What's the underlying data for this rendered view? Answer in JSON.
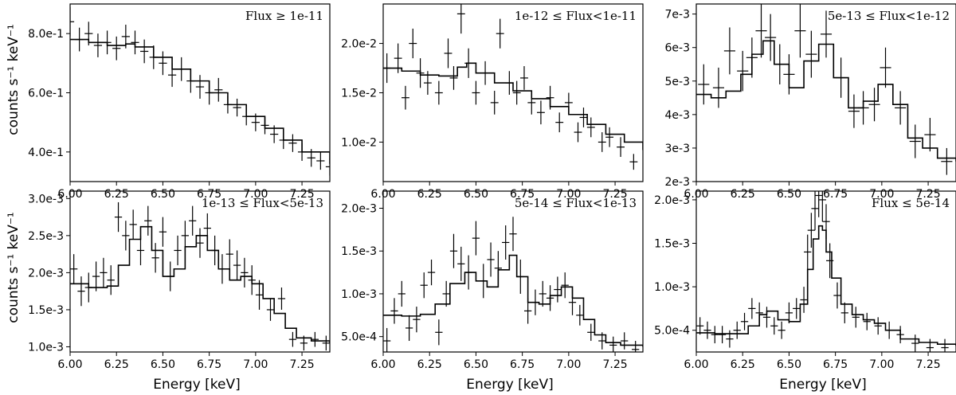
{
  "figure": {
    "ylabel": "counts s⁻¹ keV⁻¹",
    "xlabel": "Energy [keV]"
  },
  "chart_data": [
    {
      "type": "line",
      "title": "Flux ≥ 1e-11",
      "xlim": [
        6.0,
        7.4
      ],
      "ylim": [
        0.3,
        0.9
      ],
      "xticks": [
        6.0,
        6.25,
        6.5,
        6.75,
        7.0,
        7.25
      ],
      "xtick_labels": [
        "6.00",
        "6.25",
        "6.50",
        "6.75",
        "7.00",
        "7.25"
      ],
      "yticks": [
        0.4,
        0.6,
        0.8
      ],
      "ytick_labels": [
        "4.0e-1",
        "6.0e-1",
        "8.0e-1"
      ],
      "model": {
        "x": [
          6.0,
          6.1,
          6.2,
          6.3,
          6.35,
          6.45,
          6.55,
          6.65,
          6.75,
          6.85,
          6.95,
          7.05,
          7.15,
          7.25,
          7.4
        ],
        "y": [
          0.78,
          0.77,
          0.76,
          0.765,
          0.755,
          0.72,
          0.68,
          0.64,
          0.6,
          0.56,
          0.52,
          0.48,
          0.44,
          0.4,
          0.36
        ]
      },
      "points": {
        "x": [
          6.0,
          6.05,
          6.1,
          6.15,
          6.2,
          6.25,
          6.3,
          6.35,
          6.4,
          6.45,
          6.5,
          6.55,
          6.6,
          6.65,
          6.7,
          6.75,
          6.8,
          6.85,
          6.9,
          6.95,
          7.0,
          7.05,
          7.1,
          7.15,
          7.2,
          7.25,
          7.3,
          7.35,
          7.4
        ],
        "y": [
          0.84,
          0.78,
          0.8,
          0.76,
          0.77,
          0.75,
          0.79,
          0.77,
          0.74,
          0.72,
          0.7,
          0.66,
          0.68,
          0.64,
          0.62,
          0.6,
          0.61,
          0.56,
          0.55,
          0.52,
          0.5,
          0.49,
          0.46,
          0.44,
          0.43,
          0.4,
          0.38,
          0.37,
          0.35
        ],
        "yerr": [
          0.05,
          0.04,
          0.04,
          0.04,
          0.04,
          0.04,
          0.04,
          0.04,
          0.04,
          0.04,
          0.04,
          0.04,
          0.04,
          0.04,
          0.04,
          0.04,
          0.04,
          0.03,
          0.03,
          0.03,
          0.03,
          0.03,
          0.03,
          0.03,
          0.03,
          0.03,
          0.03,
          0.03,
          0.03
        ]
      }
    },
    {
      "type": "line",
      "title": "1e-12 ≤ Flux<1e-11",
      "xlim": [
        6.0,
        7.4
      ],
      "ylim": [
        0.006,
        0.024
      ],
      "xticks": [
        6.0,
        6.25,
        6.5,
        6.75,
        7.0,
        7.25
      ],
      "xtick_labels": [
        "6.00",
        "6.25",
        "6.50",
        "6.75",
        "7.00",
        "7.25"
      ],
      "yticks": [
        0.01,
        0.015,
        0.02
      ],
      "ytick_labels": [
        "1.0e-2",
        "1.5e-2",
        "2.0e-2"
      ],
      "model": {
        "x": [
          6.0,
          6.1,
          6.2,
          6.3,
          6.4,
          6.45,
          6.5,
          6.6,
          6.7,
          6.8,
          6.9,
          7.0,
          7.1,
          7.2,
          7.3,
          7.4
        ],
        "y": [
          0.0175,
          0.0172,
          0.0168,
          0.0167,
          0.0176,
          0.018,
          0.017,
          0.016,
          0.0152,
          0.0144,
          0.0136,
          0.0128,
          0.0118,
          0.0108,
          0.01,
          0.0092
        ]
      },
      "points": {
        "x": [
          6.02,
          6.08,
          6.12,
          6.16,
          6.2,
          6.24,
          6.3,
          6.35,
          6.38,
          6.42,
          6.46,
          6.5,
          6.55,
          6.6,
          6.63,
          6.68,
          6.72,
          6.76,
          6.8,
          6.85,
          6.9,
          6.95,
          7.0,
          7.05,
          7.08,
          7.12,
          7.18,
          7.22,
          7.28,
          7.35
        ],
        "y": [
          0.0175,
          0.0185,
          0.0145,
          0.02,
          0.017,
          0.016,
          0.015,
          0.019,
          0.0165,
          0.023,
          0.018,
          0.015,
          0.017,
          0.014,
          0.021,
          0.016,
          0.015,
          0.0165,
          0.014,
          0.013,
          0.0145,
          0.012,
          0.014,
          0.011,
          0.0125,
          0.0115,
          0.01,
          0.0105,
          0.0095,
          0.008
        ],
        "yerr": [
          0.0015,
          0.0015,
          0.0012,
          0.0015,
          0.0015,
          0.0012,
          0.0012,
          0.0015,
          0.0012,
          0.002,
          0.0015,
          0.0012,
          0.0012,
          0.0012,
          0.0015,
          0.0012,
          0.0012,
          0.0012,
          0.0012,
          0.0012,
          0.0012,
          0.001,
          0.001,
          0.001,
          0.001,
          0.001,
          0.001,
          0.001,
          0.001,
          0.0008
        ]
      }
    },
    {
      "type": "line",
      "title": "5e-13 ≤ Flux<1e-12",
      "xlim": [
        6.0,
        7.4
      ],
      "ylim": [
        0.002,
        0.0073
      ],
      "xticks": [
        6.0,
        6.25,
        6.5,
        6.75,
        7.0,
        7.25
      ],
      "xtick_labels": [
        "6.00",
        "6.25",
        "6.50",
        "6.75",
        "7.00",
        "7.25"
      ],
      "yticks": [
        0.002,
        0.003,
        0.004,
        0.005,
        0.006,
        0.007
      ],
      "ytick_labels": [
        "2e-3",
        "3e-3",
        "4e-3",
        "5e-3",
        "6e-3",
        "7e-3"
      ],
      "model": {
        "x": [
          6.0,
          6.08,
          6.16,
          6.24,
          6.3,
          6.36,
          6.42,
          6.5,
          6.58,
          6.66,
          6.74,
          6.82,
          6.9,
          6.98,
          7.06,
          7.14,
          7.22,
          7.3,
          7.4
        ],
        "y": [
          0.0046,
          0.0045,
          0.0047,
          0.0052,
          0.0058,
          0.0062,
          0.0055,
          0.0048,
          0.0056,
          0.0061,
          0.0051,
          0.0042,
          0.0044,
          0.0049,
          0.0043,
          0.0033,
          0.003,
          0.0027,
          0.0026
        ]
      },
      "points": {
        "x": [
          6.04,
          6.12,
          6.18,
          6.25,
          6.3,
          6.35,
          6.4,
          6.45,
          6.5,
          6.56,
          6.62,
          6.7,
          6.78,
          6.85,
          6.9,
          6.96,
          7.02,
          7.1,
          7.18,
          7.26,
          7.35
        ],
        "y": [
          0.0049,
          0.0048,
          0.0059,
          0.0053,
          0.0057,
          0.0065,
          0.0063,
          0.0055,
          0.0052,
          0.0065,
          0.0058,
          0.0064,
          0.0051,
          0.0041,
          0.0042,
          0.0043,
          0.0054,
          0.0042,
          0.0032,
          0.0034,
          0.0026
        ],
        "yerr": [
          0.0006,
          0.0006,
          0.0007,
          0.0006,
          0.0006,
          0.0008,
          0.0007,
          0.0006,
          0.0006,
          0.0008,
          0.0007,
          0.0007,
          0.0006,
          0.0005,
          0.0005,
          0.0005,
          0.0006,
          0.0005,
          0.0005,
          0.0005,
          0.0004
        ]
      }
    },
    {
      "type": "line",
      "title": "1e-13 ≤ Flux<5e-13",
      "xlim": [
        6.0,
        7.4
      ],
      "ylim": [
        0.00093,
        0.0031
      ],
      "xticks": [
        6.0,
        6.25,
        6.5,
        6.75,
        7.0,
        7.25
      ],
      "xtick_labels": [
        "6.00",
        "6.25",
        "6.50",
        "6.75",
        "7.00",
        "7.25"
      ],
      "yticks": [
        0.001,
        0.0015,
        0.002,
        0.0025,
        0.003
      ],
      "ytick_labels": [
        "1.0e-3",
        "1.5e-3",
        "2.0e-3",
        "2.5e-3",
        "3.0e-3"
      ],
      "model": {
        "x": [
          6.0,
          6.1,
          6.2,
          6.26,
          6.32,
          6.38,
          6.44,
          6.5,
          6.56,
          6.62,
          6.68,
          6.74,
          6.8,
          6.86,
          6.92,
          6.98,
          7.04,
          7.1,
          7.16,
          7.22,
          7.3,
          7.4
        ],
        "y": [
          0.00185,
          0.0018,
          0.00182,
          0.0021,
          0.00245,
          0.00262,
          0.0023,
          0.00195,
          0.00205,
          0.00235,
          0.0025,
          0.0023,
          0.00205,
          0.0019,
          0.00195,
          0.00185,
          0.00165,
          0.00145,
          0.00125,
          0.00112,
          0.00108,
          0.00105
        ]
      },
      "points": {
        "x": [
          6.02,
          6.06,
          6.1,
          6.14,
          6.18,
          6.22,
          6.26,
          6.3,
          6.34,
          6.38,
          6.42,
          6.46,
          6.5,
          6.54,
          6.58,
          6.62,
          6.66,
          6.7,
          6.74,
          6.78,
          6.82,
          6.86,
          6.9,
          6.94,
          6.98,
          7.02,
          7.08,
          7.14,
          7.2,
          7.26,
          7.32,
          7.38
        ],
        "y": [
          0.00205,
          0.00175,
          0.0018,
          0.00195,
          0.002,
          0.0019,
          0.00275,
          0.0025,
          0.00265,
          0.0023,
          0.0027,
          0.0022,
          0.00255,
          0.00195,
          0.0023,
          0.0025,
          0.0027,
          0.0024,
          0.0026,
          0.0023,
          0.00205,
          0.00225,
          0.0021,
          0.002,
          0.0019,
          0.0017,
          0.0015,
          0.00165,
          0.0011,
          0.00105,
          0.0011,
          0.00105
        ],
        "yerr": [
          0.0002,
          0.0002,
          0.0002,
          0.0002,
          0.0002,
          0.0002,
          0.0002,
          0.0002,
          0.0002,
          0.0002,
          0.0002,
          0.0002,
          0.0002,
          0.0002,
          0.0002,
          0.0002,
          0.0002,
          0.0002,
          0.0002,
          0.0002,
          0.0002,
          0.0002,
          0.0002,
          0.0002,
          0.0002,
          0.0002,
          0.00015,
          0.00015,
          0.0001,
          0.0001,
          0.0001,
          0.0001
        ]
      }
    },
    {
      "type": "line",
      "title": "5e-14 ≤ Flux<1e-13",
      "xlim": [
        6.0,
        7.4
      ],
      "ylim": [
        0.00032,
        0.0022
      ],
      "xticks": [
        6.0,
        6.25,
        6.5,
        6.75,
        7.0,
        7.25
      ],
      "xtick_labels": [
        "6.00",
        "6.25",
        "6.50",
        "6.75",
        "7.00",
        "7.25"
      ],
      "yticks": [
        0.0005,
        0.001,
        0.0015,
        0.002
      ],
      "ytick_labels": [
        "5.0e-4",
        "1.0e-3",
        "1.5e-3",
        "2.0e-3"
      ],
      "model": {
        "x": [
          6.0,
          6.1,
          6.2,
          6.28,
          6.36,
          6.44,
          6.5,
          6.56,
          6.62,
          6.68,
          6.72,
          6.78,
          6.84,
          6.9,
          6.96,
          7.02,
          7.08,
          7.14,
          7.2,
          7.28,
          7.4
        ],
        "y": [
          0.00075,
          0.00074,
          0.00076,
          0.00088,
          0.00112,
          0.00125,
          0.00115,
          0.00108,
          0.00128,
          0.00145,
          0.0012,
          0.0009,
          0.00088,
          0.00098,
          0.00108,
          0.00095,
          0.0007,
          0.00052,
          0.00043,
          0.0004,
          0.00038
        ]
      },
      "points": {
        "x": [
          6.02,
          6.06,
          6.1,
          6.14,
          6.18,
          6.22,
          6.26,
          6.3,
          6.34,
          6.38,
          6.42,
          6.46,
          6.5,
          6.54,
          6.58,
          6.62,
          6.66,
          6.7,
          6.74,
          6.78,
          6.82,
          6.86,
          6.9,
          6.94,
          6.98,
          7.02,
          7.06,
          7.12,
          7.18,
          7.24,
          7.3,
          7.36
        ],
        "y": [
          0.00045,
          0.0008,
          0.001,
          0.0006,
          0.0007,
          0.0011,
          0.00125,
          0.00055,
          0.001,
          0.0015,
          0.00135,
          0.00125,
          0.00165,
          0.00115,
          0.0014,
          0.0013,
          0.0016,
          0.0017,
          0.0012,
          0.0008,
          0.0009,
          0.001,
          0.00095,
          0.00105,
          0.0011,
          0.0009,
          0.00075,
          0.00055,
          0.00045,
          0.0004,
          0.00045,
          0.00035
        ],
        "yerr": [
          0.00015,
          0.00015,
          0.00015,
          0.00015,
          0.00015,
          0.00015,
          0.00015,
          0.00015,
          0.00015,
          0.0002,
          0.0002,
          0.0002,
          0.0002,
          0.0002,
          0.0002,
          0.0002,
          0.0002,
          0.0002,
          0.0002,
          0.00015,
          0.00015,
          0.00015,
          0.00015,
          0.00015,
          0.00015,
          0.00015,
          0.00012,
          0.0001,
          0.0001,
          0.0001,
          0.0001,
          0.0001
        ]
      }
    },
    {
      "type": "line",
      "title": "Flux ≤ 5e-14",
      "xlim": [
        6.0,
        7.4
      ],
      "ylim": [
        0.00025,
        0.0021
      ],
      "xticks": [
        6.0,
        6.25,
        6.5,
        6.75,
        7.0,
        7.25
      ],
      "xtick_labels": [
        "6.00",
        "6.25",
        "6.50",
        "6.75",
        "7.00",
        "7.25"
      ],
      "yticks": [
        0.0005,
        0.001,
        0.0015,
        0.002
      ],
      "ytick_labels": [
        "5.0e-4",
        "1.0e-3",
        "1.5e-3",
        "2.0e-3"
      ],
      "model": {
        "x": [
          6.0,
          6.1,
          6.2,
          6.28,
          6.34,
          6.38,
          6.44,
          6.5,
          6.56,
          6.6,
          6.63,
          6.66,
          6.68,
          6.7,
          6.73,
          6.78,
          6.84,
          6.9,
          6.96,
          7.02,
          7.1,
          7.2,
          7.3,
          7.4
        ],
        "y": [
          0.00047,
          0.00046,
          0.00046,
          0.00055,
          0.00068,
          0.00072,
          0.00062,
          0.0006,
          0.0008,
          0.0012,
          0.00155,
          0.0017,
          0.00165,
          0.0014,
          0.0011,
          0.0008,
          0.00068,
          0.00062,
          0.00058,
          0.0005,
          0.0004,
          0.00036,
          0.00034,
          0.00032
        ]
      },
      "points": {
        "x": [
          6.02,
          6.06,
          6.1,
          6.14,
          6.18,
          6.22,
          6.26,
          6.3,
          6.34,
          6.38,
          6.42,
          6.46,
          6.5,
          6.54,
          6.58,
          6.6,
          6.62,
          6.64,
          6.66,
          6.68,
          6.7,
          6.72,
          6.76,
          6.8,
          6.86,
          6.92,
          6.98,
          7.04,
          7.1,
          7.18,
          7.26,
          7.34
        ],
        "y": [
          0.00055,
          0.0005,
          0.00045,
          0.00045,
          0.0004,
          0.0005,
          0.0006,
          0.00075,
          0.0007,
          0.00065,
          0.00055,
          0.0005,
          0.0007,
          0.00075,
          0.00085,
          0.0014,
          0.00165,
          0.0019,
          0.00205,
          0.002,
          0.00175,
          0.0013,
          0.0009,
          0.0007,
          0.00065,
          0.0006,
          0.00055,
          0.0005,
          0.00045,
          0.00035,
          0.0003,
          0.0003
        ],
        "yerr": [
          0.0001,
          0.0001,
          0.0001,
          0.0001,
          0.0001,
          0.0001,
          0.0001,
          0.00012,
          0.00012,
          0.00012,
          0.0001,
          0.0001,
          0.00012,
          0.00012,
          0.00015,
          0.0002,
          0.0002,
          0.00025,
          0.00025,
          0.00025,
          0.0002,
          0.0002,
          0.00015,
          0.00012,
          0.00012,
          0.0001,
          0.0001,
          0.0001,
          0.0001,
          0.0001,
          0.0001,
          0.0001
        ]
      }
    }
  ]
}
